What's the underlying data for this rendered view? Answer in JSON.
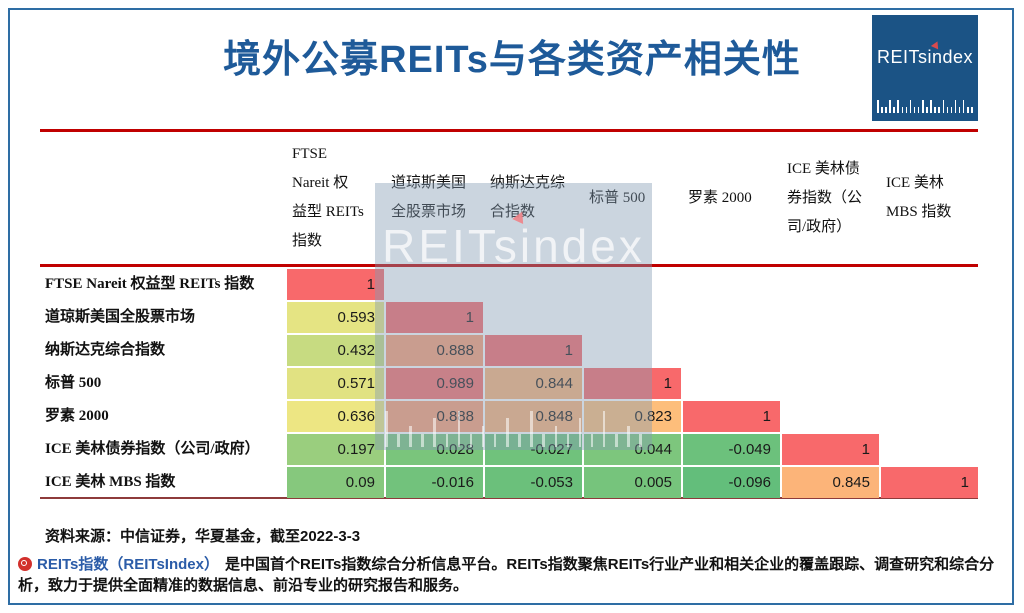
{
  "title": "境外公募REITs与各类资产相关性",
  "brand": {
    "pre": "REITs",
    "i": "i",
    "post": "ndex"
  },
  "colors": {
    "title_blue": "#1E5A99",
    "rule_red": "#C00000",
    "bottom_rule": "#8E3B3B",
    "frame_blue": "#2E6DA4",
    "logo_bg": "#1B5385",
    "footer_blue": "#2B5CA8",
    "watermark_tint": "rgba(131,155,179,0.42)"
  },
  "chart_data": {
    "type": "heatmap",
    "title": "境外公募REITs与各类资产相关性",
    "columns": [
      {
        "label": "FTSE Nareit 权益型 REITs 指数",
        "lines": [
          "FTSE",
          "Nareit 权",
          "益型 REITs",
          "指数"
        ]
      },
      {
        "label": "道琼斯美国全股票市场",
        "lines": [
          "道琼斯美国",
          "全股票市场"
        ]
      },
      {
        "label": "纳斯达克综合指数",
        "lines": [
          "纳斯达克综",
          "合指数"
        ]
      },
      {
        "label": "标普 500",
        "lines": [
          "标普 500"
        ]
      },
      {
        "label": "罗素 2000",
        "lines": [
          "罗素 2000"
        ]
      },
      {
        "label": "ICE 美林债券指数（公司/政府）",
        "lines": [
          "ICE 美林债",
          "券指数（公",
          "司/政府）"
        ]
      },
      {
        "label": "ICE 美林 MBS 指数",
        "lines": [
          "ICE 美林",
          "MBS 指数"
        ]
      }
    ],
    "rows": [
      {
        "label": "FTSE Nareit 权益型 REITs 指数",
        "values": [
          1
        ]
      },
      {
        "label": "道琼斯美国全股票市场",
        "values": [
          0.593,
          1
        ]
      },
      {
        "label": "纳斯达克综合指数",
        "values": [
          0.432,
          0.888,
          1
        ]
      },
      {
        "label": "标普 500",
        "values": [
          0.571,
          0.989,
          0.844,
          1
        ]
      },
      {
        "label": "罗素 2000",
        "values": [
          0.636,
          0.888,
          0.848,
          0.823,
          1
        ]
      },
      {
        "label": "ICE 美林债券指数（公司/政府）",
        "values": [
          0.197,
          0.028,
          -0.027,
          0.044,
          -0.049,
          1
        ]
      },
      {
        "label": "ICE 美林 MBS 指数",
        "values": [
          0.09,
          -0.016,
          -0.053,
          0.005,
          -0.096,
          0.845,
          1
        ]
      }
    ],
    "colorscale": {
      "min": -0.096,
      "mid": 0.73,
      "max": 1,
      "low": "#63BE7B",
      "mid_color": "#FFEB84",
      "high": "#F8696B"
    },
    "legend": "none",
    "grid": "white 2px gaps between cells"
  },
  "watermark_text": "REITsindex",
  "source": "资料来源：中信证券，华夏基金，截至2022-3-3",
  "footer": {
    "brand": "REITs指数（REITsIndex）",
    "text": "是中国首个REITs指数综合分析信息平台。REITs指数聚焦REITs行业产业和相关企业的覆盖跟踪、调查研究和综合分析，致力于提供全面精准的数据信息、前沿专业的研究报告和服务。"
  }
}
